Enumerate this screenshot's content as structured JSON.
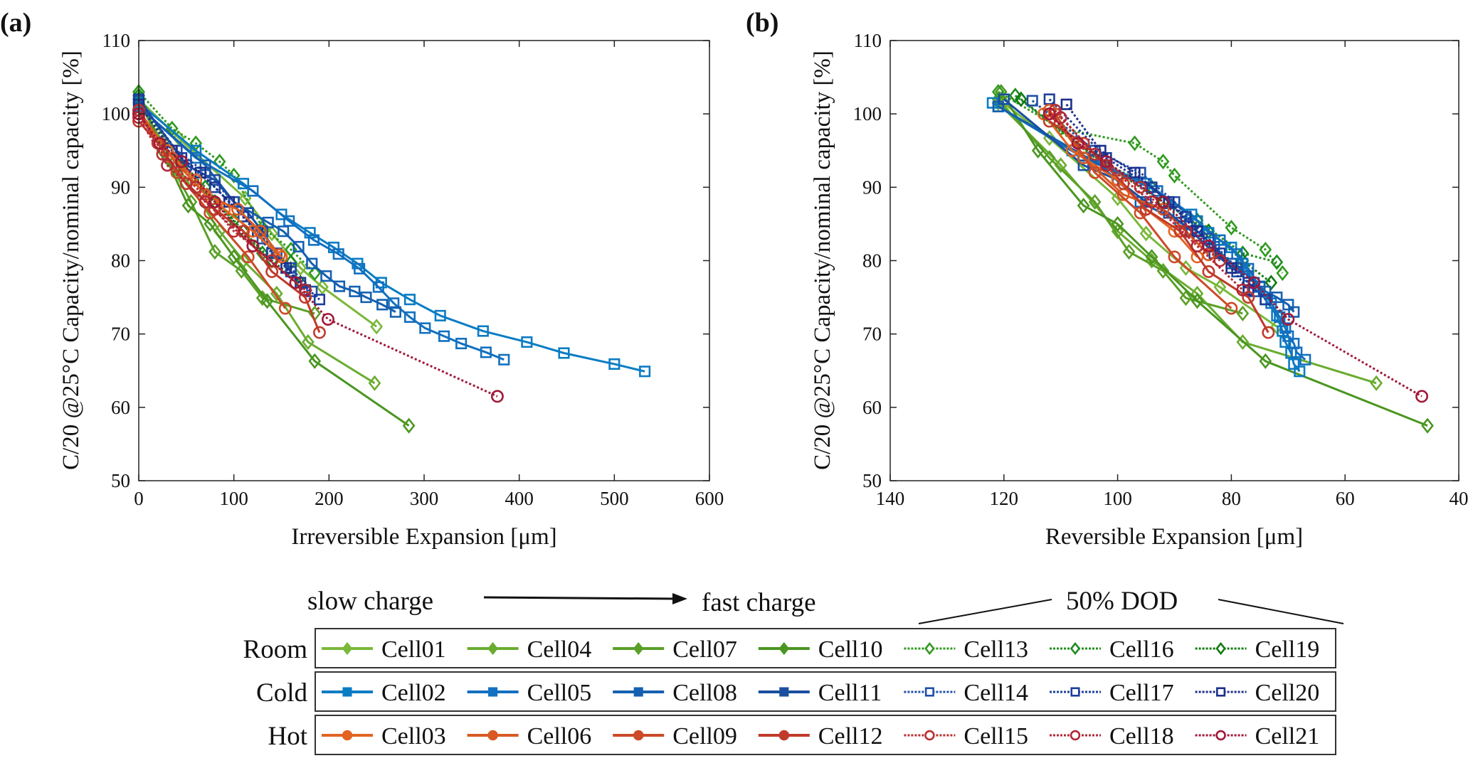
{
  "figure": {
    "panel_a_label": "(a)",
    "panel_b_label": "(b)",
    "slow_label": "slow charge",
    "fast_label": "fast charge",
    "dod_label": "50% DOD",
    "row_labels": [
      "Room",
      "Cold",
      "Hot"
    ]
  },
  "chart_data": [
    {
      "type": "line",
      "panel": "(a)",
      "xlabel": "Irreversible Expansion [μm]",
      "ylabel": "C/20 @25°C Capacity/nominal capacity [%]",
      "xlim": [
        0,
        600
      ],
      "ylim": [
        50,
        110
      ],
      "xticks": [
        0,
        100,
        200,
        300,
        400,
        500,
        600
      ],
      "yticks": [
        50,
        60,
        70,
        80,
        90,
        100,
        110
      ],
      "grid": false,
      "x_field": "irreversible_um"
    },
    {
      "type": "line",
      "panel": "(b)",
      "xlabel": "Reversible Expansion [μm]",
      "ylabel": "C/20 @25°C Capacity/nominal capacity [%]",
      "xlim": [
        140,
        40
      ],
      "x_reversed": true,
      "ylim": [
        50,
        110
      ],
      "xticks": [
        140,
        120,
        100,
        80,
        60,
        40
      ],
      "yticks": [
        50,
        60,
        70,
        80,
        90,
        100,
        110
      ],
      "grid": false,
      "x_field": "reversible_um"
    }
  ],
  "series_fields": [
    "irreversible_um",
    "reversible_um",
    "capacity_pct"
  ],
  "series": [
    {
      "name": "Cell01",
      "group": "Room",
      "color": "#7ab83a",
      "dash": false,
      "marker": "diamond",
      "points": [
        [
          0,
          121,
          102
        ],
        [
          42,
          112,
          96.7
        ],
        [
          112,
          100,
          88.5
        ],
        [
          140,
          95,
          83.7
        ],
        [
          170,
          88,
          79
        ],
        [
          193,
          82,
          76.4
        ],
        [
          250,
          72,
          71
        ]
      ]
    },
    {
      "name": "Cell04",
      "group": "Room",
      "color": "#6aac30",
      "dash": false,
      "marker": "diamond",
      "points": [
        [
          0,
          121,
          101.5
        ],
        [
          40,
          110,
          93
        ],
        [
          85,
          100,
          84
        ],
        [
          110,
          94,
          80
        ],
        [
          145,
          86,
          75.5
        ],
        [
          178,
          78,
          68.9
        ],
        [
          248,
          54.5,
          63.3
        ]
      ]
    },
    {
      "name": "Cell07",
      "group": "Room",
      "color": "#5aa028",
      "dash": false,
      "marker": "diamond",
      "points": [
        [
          0,
          121,
          102
        ],
        [
          30,
          112,
          94
        ],
        [
          55,
          104,
          88
        ],
        [
          80,
          98,
          81.2
        ],
        [
          108,
          92,
          78.6
        ],
        [
          130,
          88,
          74.9
        ],
        [
          185,
          78,
          72.8
        ]
      ]
    },
    {
      "name": "Cell10",
      "group": "Room",
      "color": "#4a9620",
      "dash": false,
      "marker": "diamond",
      "points": [
        [
          0,
          120.5,
          103
        ],
        [
          25,
          114,
          95
        ],
        [
          52,
          106,
          87.5
        ],
        [
          75,
          100,
          85
        ],
        [
          100,
          94,
          80.5
        ],
        [
          135,
          86,
          74.5
        ],
        [
          185,
          74,
          66.3
        ],
        [
          284,
          45.5,
          57.5
        ]
      ]
    },
    {
      "name": "Cell13",
      "group": "Room",
      "color": "#2f9a1e",
      "dash": true,
      "marker": "diamond",
      "points": [
        [
          0,
          121,
          103
        ],
        [
          35,
          110,
          98
        ],
        [
          60,
          97,
          96
        ],
        [
          85,
          92,
          93.5
        ],
        [
          100,
          90,
          91.6
        ],
        [
          130,
          80,
          84.5
        ],
        [
          160,
          74,
          81.5
        ],
        [
          185,
          71,
          78.3
        ]
      ]
    },
    {
      "name": "Cell16",
      "group": "Room",
      "color": "#1f8c1f",
      "dash": true,
      "marker": "diamond",
      "points": [
        [
          0,
          118,
          102.5
        ],
        [
          40,
          104,
          94
        ],
        [
          70,
          94,
          90
        ],
        [
          100,
          86,
          85.5
        ],
        [
          130,
          78,
          81
        ],
        [
          160,
          72,
          79.8
        ]
      ]
    },
    {
      "name": "Cell19",
      "group": "Room",
      "color": "#117a11",
      "dash": true,
      "marker": "diamond",
      "points": [
        [
          0,
          117,
          102
        ],
        [
          45,
          102,
          93
        ],
        [
          80,
          92,
          88
        ],
        [
          110,
          84,
          84
        ],
        [
          140,
          78,
          80
        ],
        [
          170,
          73,
          77
        ]
      ]
    },
    {
      "name": "Cell02",
      "group": "Cold",
      "color": "#0a7cc4",
      "dash": false,
      "marker": "square",
      "points": [
        [
          0,
          122,
          101.5
        ],
        [
          60,
          108,
          95
        ],
        [
          110,
          95,
          90.5
        ],
        [
          150,
          87,
          86.3
        ],
        [
          180,
          84,
          83.8
        ],
        [
          205,
          80,
          81.8
        ],
        [
          230,
          78,
          79.6
        ],
        [
          255,
          76,
          77
        ],
        [
          285,
          74,
          74.7
        ],
        [
          317,
          72,
          72.5
        ],
        [
          362,
          71,
          70.4
        ],
        [
          408,
          70.5,
          68.9
        ],
        [
          447,
          69.5,
          67.4
        ],
        [
          500,
          69,
          65.9
        ],
        [
          532,
          68,
          64.9
        ]
      ]
    },
    {
      "name": "Cell05",
      "group": "Cold",
      "color": "#1270c0",
      "dash": false,
      "marker": "square",
      "points": [
        [
          0,
          121,
          101
        ],
        [
          60,
          106,
          94
        ],
        [
          120,
          93,
          89.5
        ],
        [
          158,
          86,
          85.4
        ],
        [
          184,
          82,
          82.8
        ],
        [
          210,
          79,
          80.9
        ],
        [
          232,
          77,
          78.9
        ],
        [
          252,
          75,
          76.4
        ],
        [
          268,
          73,
          74.2
        ],
        [
          285,
          71.5,
          72.3
        ],
        [
          301,
          70.5,
          70.8
        ],
        [
          321,
          70,
          69.7
        ],
        [
          339,
          69,
          68.7
        ],
        [
          365,
          68.5,
          67.5
        ],
        [
          384,
          67,
          66.5
        ]
      ]
    },
    {
      "name": "Cell08",
      "group": "Cold",
      "color": "#1560b0",
      "dash": false,
      "marker": "square",
      "points": [
        [
          0,
          121,
          101
        ],
        [
          70,
          103,
          93
        ],
        [
          100,
          96,
          88
        ],
        [
          136,
          89,
          85.2
        ],
        [
          152,
          86,
          84
        ],
        [
          168,
          83,
          81.9
        ],
        [
          182,
          80,
          79.6
        ],
        [
          197,
          77,
          77.9
        ],
        [
          211,
          75,
          76.5
        ],
        [
          227,
          74,
          75.8
        ],
        [
          239,
          72,
          75
        ],
        [
          256,
          70,
          74
        ],
        [
          270,
          69,
          73
        ]
      ]
    },
    {
      "name": "Cell11",
      "group": "Cold",
      "color": "#1a4ea0",
      "dash": false,
      "marker": "square",
      "points": [
        [
          0,
          120,
          102
        ],
        [
          50,
          106,
          93
        ],
        [
          80,
          100,
          91
        ],
        [
          100,
          95,
          88
        ],
        [
          115,
          91,
          86.5
        ],
        [
          130,
          87,
          84
        ],
        [
          145,
          83,
          81
        ],
        [
          160,
          79,
          78.5
        ]
      ]
    },
    {
      "name": "Cell14",
      "group": "Cold",
      "color": "#2050a8",
      "dash": true,
      "marker": "square",
      "points": [
        [
          0,
          115,
          101.8
        ],
        [
          40,
          104,
          95
        ],
        [
          70,
          96,
          92
        ],
        [
          100,
          90,
          88
        ],
        [
          130,
          84,
          83
        ],
        [
          160,
          79,
          79
        ],
        [
          182,
          76,
          75.8
        ]
      ]
    },
    {
      "name": "Cell17",
      "group": "Cold",
      "color": "#1d3e9a",
      "dash": true,
      "marker": "square",
      "points": [
        [
          0,
          112,
          102
        ],
        [
          45,
          102,
          94
        ],
        [
          80,
          94,
          90
        ],
        [
          110,
          88,
          86
        ],
        [
          140,
          82,
          81
        ],
        [
          170,
          77,
          77
        ],
        [
          190,
          74,
          74.7
        ]
      ]
    },
    {
      "name": "Cell20",
      "group": "Cold",
      "color": "#1c2e8a",
      "dash": true,
      "marker": "square",
      "points": [
        [
          0,
          109,
          101.3
        ],
        [
          35,
          103,
          95
        ],
        [
          65,
          97,
          92
        ],
        [
          95,
          91,
          88
        ],
        [
          125,
          86,
          84
        ],
        [
          155,
          80,
          79
        ],
        [
          175,
          77,
          76
        ]
      ]
    },
    {
      "name": "Cell03",
      "group": "Hot",
      "color": "#e26422",
      "dash": false,
      "marker": "circle",
      "points": [
        [
          0,
          113,
          100
        ],
        [
          30,
          108,
          95
        ],
        [
          60,
          100,
          91
        ],
        [
          90,
          95,
          87
        ],
        [
          120,
          90,
          84
        ],
        [
          150,
          86,
          80.5
        ]
      ]
    },
    {
      "name": "Cell06",
      "group": "Hot",
      "color": "#d85a22",
      "dash": false,
      "marker": "circle",
      "points": [
        [
          0,
          112,
          100.5
        ],
        [
          35,
          106,
          94
        ],
        [
          70,
          99,
          89
        ],
        [
          104,
          92,
          87
        ],
        [
          128,
          88,
          84
        ],
        [
          148,
          84,
          80.8
        ]
      ]
    },
    {
      "name": "Cell09",
      "group": "Hot",
      "color": "#cc4a28",
      "dash": false,
      "marker": "circle",
      "points": [
        [
          0,
          111,
          100
        ],
        [
          40,
          104,
          92
        ],
        [
          75,
          96,
          86.5
        ],
        [
          115,
          90,
          80.5
        ],
        [
          154,
          80,
          73.5
        ]
      ]
    },
    {
      "name": "Cell12",
      "group": "Hot",
      "color": "#c03a2a",
      "dash": false,
      "marker": "circle",
      "points": [
        [
          0,
          112,
          99
        ],
        [
          20,
          106,
          96
        ],
        [
          50,
          99,
          90.5
        ],
        [
          80,
          95,
          87
        ],
        [
          110,
          89,
          84
        ],
        [
          140,
          84,
          78.5
        ],
        [
          175,
          77,
          75
        ],
        [
          190,
          73.5,
          70.2
        ]
      ]
    },
    {
      "name": "Cell15",
      "group": "Hot",
      "color": "#b83030",
      "dash": true,
      "marker": "circle",
      "points": [
        [
          0,
          111,
          100.5
        ],
        [
          25,
          104,
          94.5
        ],
        [
          60,
          96,
          90
        ],
        [
          100,
          88,
          84
        ],
        [
          140,
          82,
          80
        ]
      ]
    },
    {
      "name": "Cell18",
      "group": "Hot",
      "color": "#b02838",
      "dash": true,
      "marker": "circle",
      "points": [
        [
          0,
          110,
          99.5
        ],
        [
          30,
          102,
          93
        ],
        [
          70,
          94,
          88
        ],
        [
          120,
          86,
          82
        ],
        [
          175,
          78,
          76
        ]
      ]
    },
    {
      "name": "Cell21",
      "group": "Hot",
      "color": "#a01838",
      "dash": true,
      "marker": "circle",
      "points": [
        [
          0,
          112,
          100
        ],
        [
          22,
          107,
          96
        ],
        [
          45,
          102,
          93.5
        ],
        [
          80,
          92,
          88
        ],
        [
          120,
          84,
          82
        ],
        [
          165,
          76,
          77
        ],
        [
          199,
          70,
          72
        ],
        [
          377,
          46.5,
          61.5
        ]
      ]
    }
  ]
}
